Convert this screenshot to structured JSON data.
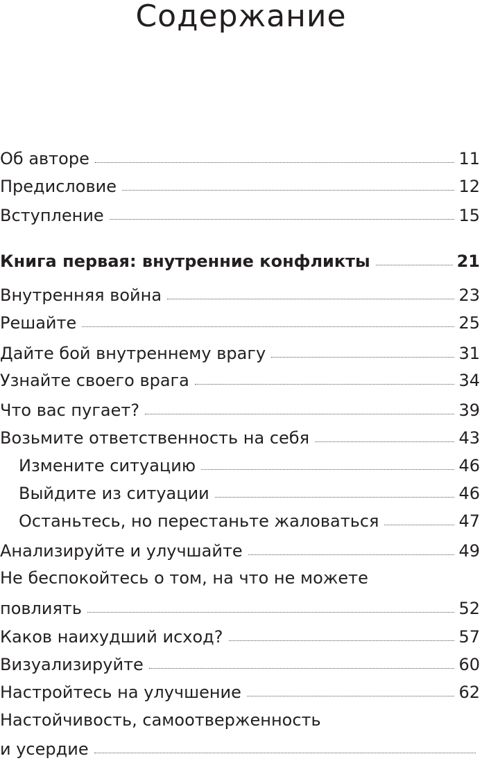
{
  "header": {
    "title": "Содержание"
  },
  "toc": [
    {
      "lines": [
        "Об авторе"
      ],
      "page": "11"
    },
    {
      "lines": [
        "Предисловие"
      ],
      "page": "12"
    },
    {
      "lines": [
        "Вступление"
      ],
      "page": "15"
    },
    {
      "lines": [
        "Книга первая: внутренние конфликты"
      ],
      "page": "21",
      "bold": true
    },
    {
      "lines": [
        "Внутренняя война"
      ],
      "page": "23"
    },
    {
      "lines": [
        "Решайте"
      ],
      "page": "25"
    },
    {
      "lines": [
        "Дайте бой внутреннему врагу"
      ],
      "page": "31"
    },
    {
      "lines": [
        "Узнайте своего врага"
      ],
      "page": "34"
    },
    {
      "lines": [
        "Что вас пугает?"
      ],
      "page": "39"
    },
    {
      "lines": [
        "Возьмите ответственность на себя"
      ],
      "page": "43"
    },
    {
      "lines": [
        "Измените ситуацию"
      ],
      "page": "46",
      "indent": true
    },
    {
      "lines": [
        "Выйдите из ситуации"
      ],
      "page": "46",
      "indent": true
    },
    {
      "lines": [
        "Останьтесь, но перестаньте жаловаться"
      ],
      "page": "47",
      "indent": true
    },
    {
      "lines": [
        "Анализируйте и улучшайте"
      ],
      "page": "49"
    },
    {
      "lines": [
        "Не беспокойтесь о том, на что не можете",
        "повлиять"
      ],
      "page": "52"
    },
    {
      "lines": [
        "Каков наихудший исход?"
      ],
      "page": "57"
    },
    {
      "lines": [
        "Визуализируйте"
      ],
      "page": "60"
    },
    {
      "lines": [
        "Настройтесь на улучшение"
      ],
      "page": "62"
    },
    {
      "lines": [
        "Настойчивость, самоотверженность",
        "и усердие"
      ]
    }
  ]
}
